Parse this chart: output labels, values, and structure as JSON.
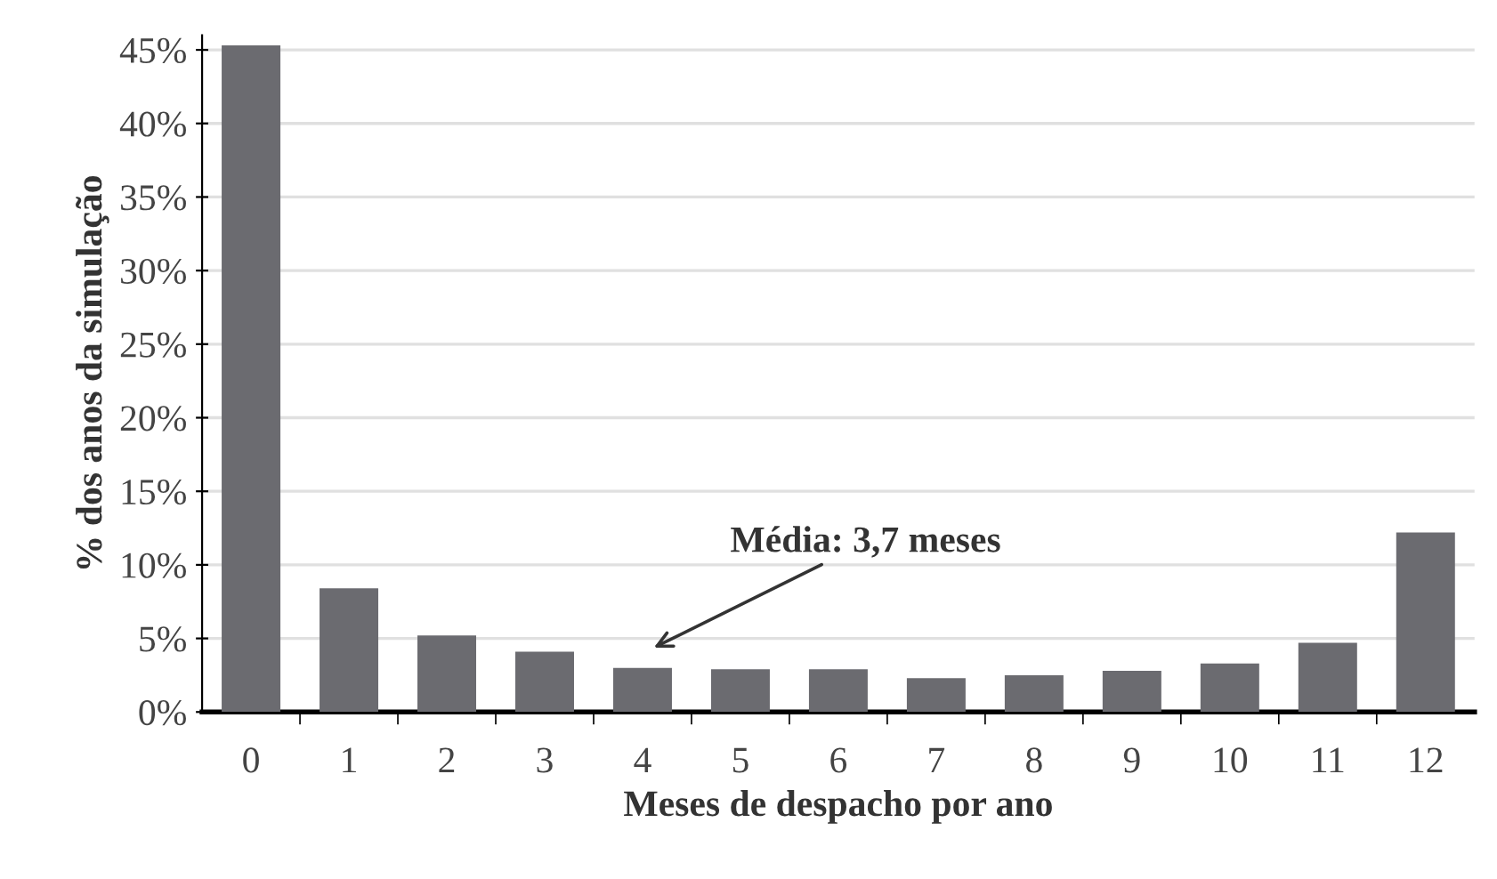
{
  "chart_data": {
    "type": "bar",
    "xlabel": "Meses de despacho por ano",
    "ylabel": "% dos anos da simulação",
    "categories": [
      "0",
      "1",
      "2",
      "3",
      "4",
      "5",
      "6",
      "7",
      "8",
      "9",
      "10",
      "11",
      "12"
    ],
    "values": [
      45.3,
      8.4,
      5.2,
      4.1,
      3.0,
      2.9,
      2.9,
      2.3,
      2.5,
      2.8,
      3.3,
      4.7,
      12.2
    ],
    "color": "#6b6b70",
    "ylim": [
      0,
      46
    ],
    "yticks": [
      {
        "value": 0,
        "label": "0%"
      },
      {
        "value": 5,
        "label": "5%"
      },
      {
        "value": 10,
        "label": "10%"
      },
      {
        "value": 15,
        "label": "15%"
      },
      {
        "value": 20,
        "label": "20%"
      },
      {
        "value": 25,
        "label": "25%"
      },
      {
        "value": 30,
        "label": "30%"
      },
      {
        "value": 35,
        "label": "35%"
      },
      {
        "value": 40,
        "label": "40%"
      },
      {
        "value": 45,
        "label": "45%"
      }
    ],
    "grid": "y",
    "annotations": [
      "Média: 3,7 meses"
    ]
  }
}
